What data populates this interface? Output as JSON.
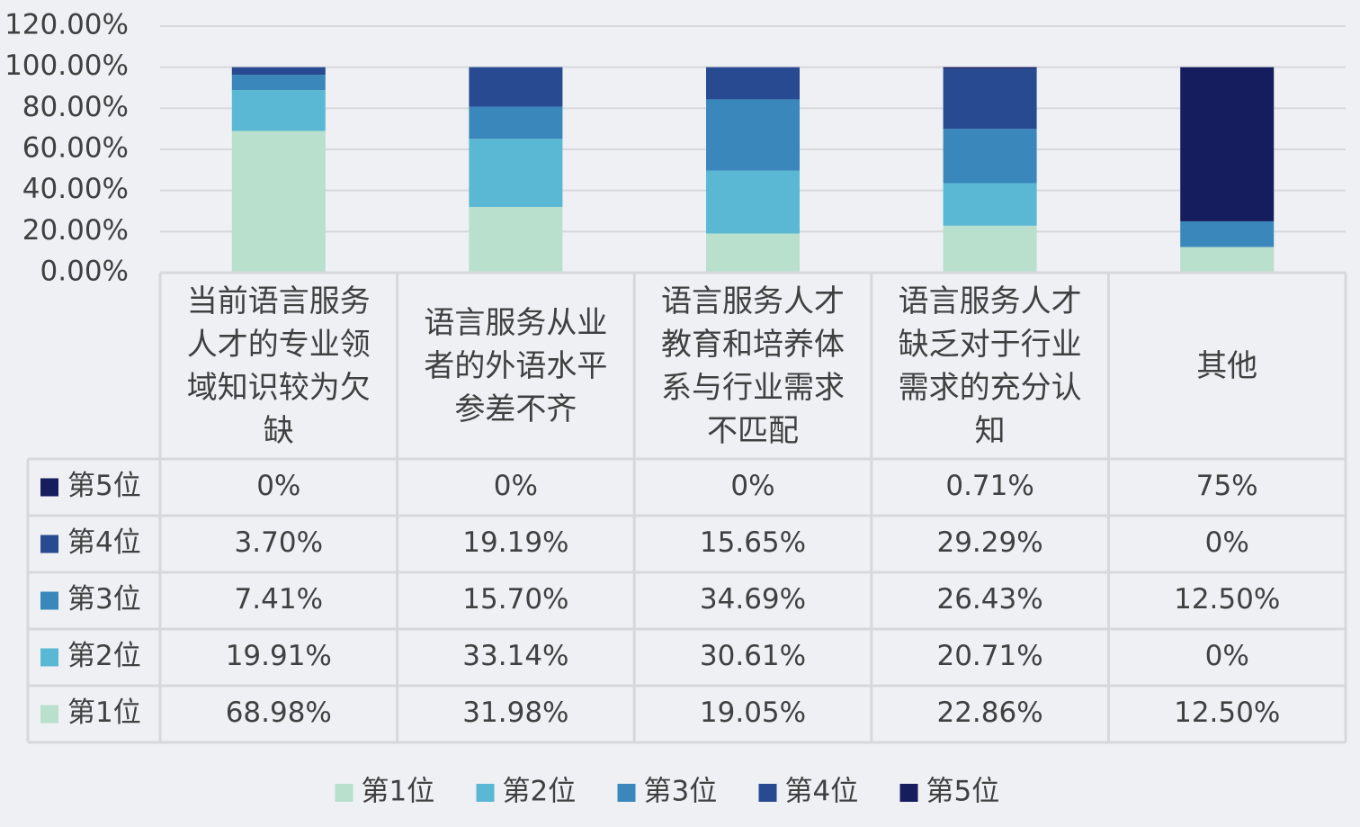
{
  "chart_data": {
    "type": "bar",
    "stacked": true,
    "categories": [
      "当前语言服务人才的专业领域知识较为欠缺",
      "语言服务从业者的外语水平参差不齐",
      "语言服务人才教育和培养体系与行业需求不匹配",
      "语言服务人才缺乏对于行业需求的充分认知",
      "其他"
    ],
    "series": [
      {
        "name": "第1位",
        "color": "#b8e0cc",
        "values": [
          68.98,
          31.98,
          19.05,
          22.86,
          12.5
        ],
        "value_labels": [
          "68.98%",
          "31.98%",
          "19.05%",
          "22.86%",
          "12.50%"
        ]
      },
      {
        "name": "第2位",
        "color": "#5bb8d4",
        "values": [
          19.91,
          33.14,
          30.61,
          20.71,
          0
        ],
        "value_labels": [
          "19.91%",
          "33.14%",
          "30.61%",
          "20.71%",
          "0%"
        ]
      },
      {
        "name": "第3位",
        "color": "#3a87bb",
        "values": [
          7.41,
          15.7,
          34.69,
          26.43,
          12.5
        ],
        "value_labels": [
          "7.41%",
          "15.70%",
          "34.69%",
          "26.43%",
          "12.50%"
        ]
      },
      {
        "name": "第4位",
        "color": "#284a90",
        "values": [
          3.7,
          19.19,
          15.65,
          29.29,
          0
        ],
        "value_labels": [
          "3.70%",
          "19.19%",
          "15.65%",
          "29.29%",
          "0%"
        ]
      },
      {
        "name": "第5位",
        "color": "#151d5e",
        "values": [
          0,
          0,
          0,
          0.71,
          75
        ],
        "value_labels": [
          "0%",
          "0%",
          "0%",
          "0.71%",
          "75%"
        ]
      }
    ],
    "ylim": [
      0,
      120
    ],
    "yticks": [
      {
        "value": 0,
        "label": "0.00%"
      },
      {
        "value": 20,
        "label": "20.00%"
      },
      {
        "value": 40,
        "label": "40.00%"
      },
      {
        "value": 60,
        "label": "60.00%"
      },
      {
        "value": 80,
        "label": "80.00%"
      },
      {
        "value": 100,
        "label": "100.00%"
      },
      {
        "value": 120,
        "label": "120.00%"
      }
    ],
    "grid": true,
    "data_table": true,
    "legend": "bottom"
  }
}
